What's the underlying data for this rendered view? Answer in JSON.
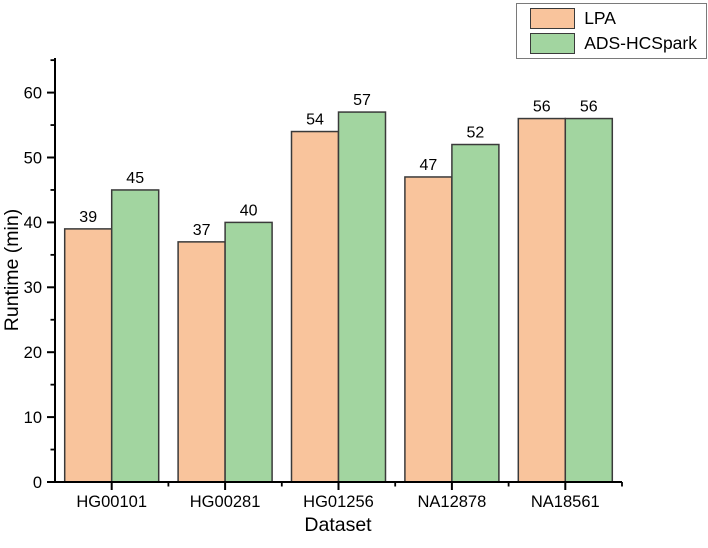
{
  "chart_data": {
    "type": "bar",
    "title": "",
    "categories": [
      "HG00101",
      "HG00281",
      "HG01256",
      "NA12878",
      "NA18561"
    ],
    "series": [
      {
        "name": "LPA",
        "color": "#f9c49c",
        "values": [
          39,
          37,
          54,
          47,
          56
        ]
      },
      {
        "name": "ADS-HCSpark",
        "color": "#a2d5a0",
        "values": [
          45,
          40,
          57,
          52,
          56
        ]
      }
    ],
    "xlabel": "Dataset",
    "ylabel": "Runtime (min)",
    "ylim": [
      0,
      65
    ],
    "y_major_ticks": [
      0,
      10,
      20,
      30,
      40,
      50,
      60
    ],
    "y_minor_step": 5,
    "bar_value_labels": true,
    "legend_position": "top-right",
    "grid": false,
    "outline_color": "#3a3a3a",
    "axis_color": "#000000"
  }
}
